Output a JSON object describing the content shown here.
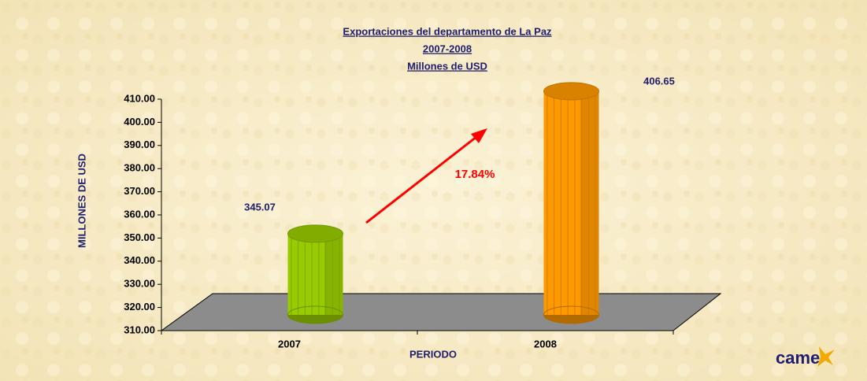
{
  "chart_data": {
    "type": "bar",
    "title": [
      "Exportaciones del departamento de La Paz",
      "2007-2008",
      "Millones de USD"
    ],
    "y_label": "MILLONES DE USD",
    "x_label": "PERIODO",
    "categories": [
      "2007",
      "2008"
    ],
    "values": [
      345.07,
      406.65
    ],
    "colors": [
      "#99cc00",
      "#ff9900"
    ],
    "ylim": [
      310,
      410
    ],
    "yticks": [
      {
        "value": 310,
        "label": "310.00"
      },
      {
        "value": 320,
        "label": "320.00"
      },
      {
        "value": 330,
        "label": "330.00"
      },
      {
        "value": 340,
        "label": "340.00"
      },
      {
        "value": 350,
        "label": "350.00"
      },
      {
        "value": 360,
        "label": "360.00"
      },
      {
        "value": 370,
        "label": "370.00"
      },
      {
        "value": 380,
        "label": "380.00"
      },
      {
        "value": 390,
        "label": "390.00"
      },
      {
        "value": 400,
        "label": "400.00"
      },
      {
        "value": 410,
        "label": "410.00"
      }
    ],
    "annotation": "17.84%",
    "logo": "came"
  }
}
